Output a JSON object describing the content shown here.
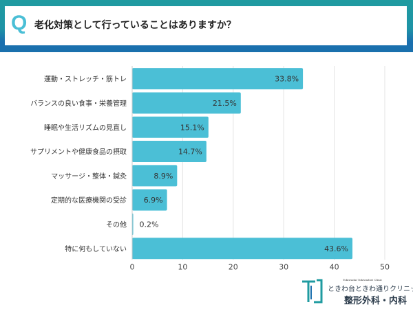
{
  "header": {
    "q_mark": "Q",
    "question": "老化対策として行っていることはありますか？"
  },
  "colors": {
    "bar": "#4bbfd6",
    "header_teal": "#1f9ba0",
    "header_blue": "#1a6fae",
    "q_mark": "#4bbfd6"
  },
  "chart_data": {
    "type": "bar",
    "orientation": "horizontal",
    "categories": [
      "運動・ストレッチ・筋トレ",
      "バランスの良い食事・栄養管理",
      "睡眠や生活リズムの見直し",
      "サプリメントや健康食品の摂取",
      "マッサージ・整体・鍼灸",
      "定期的な医療機関の受診",
      "その他",
      "特に何もしていない"
    ],
    "values": [
      33.8,
      21.5,
      15.1,
      14.7,
      8.9,
      6.9,
      0.2,
      43.6
    ],
    "data_labels": [
      "33.8%",
      "21.5%",
      "15.1%",
      "14.7%",
      "8.9%",
      "6.9%",
      "0.2%",
      "43.6%"
    ],
    "xlim": [
      0,
      50
    ],
    "xticks": [
      "0",
      "10",
      "20",
      "30",
      "40",
      "50"
    ],
    "grid": true,
    "legend": "none"
  },
  "logo": {
    "en": "Tokiwadai Tokiwadori Clinic",
    "name": "ときわ台ときわ通りクリニック",
    "dept": "整形外科・内科"
  }
}
